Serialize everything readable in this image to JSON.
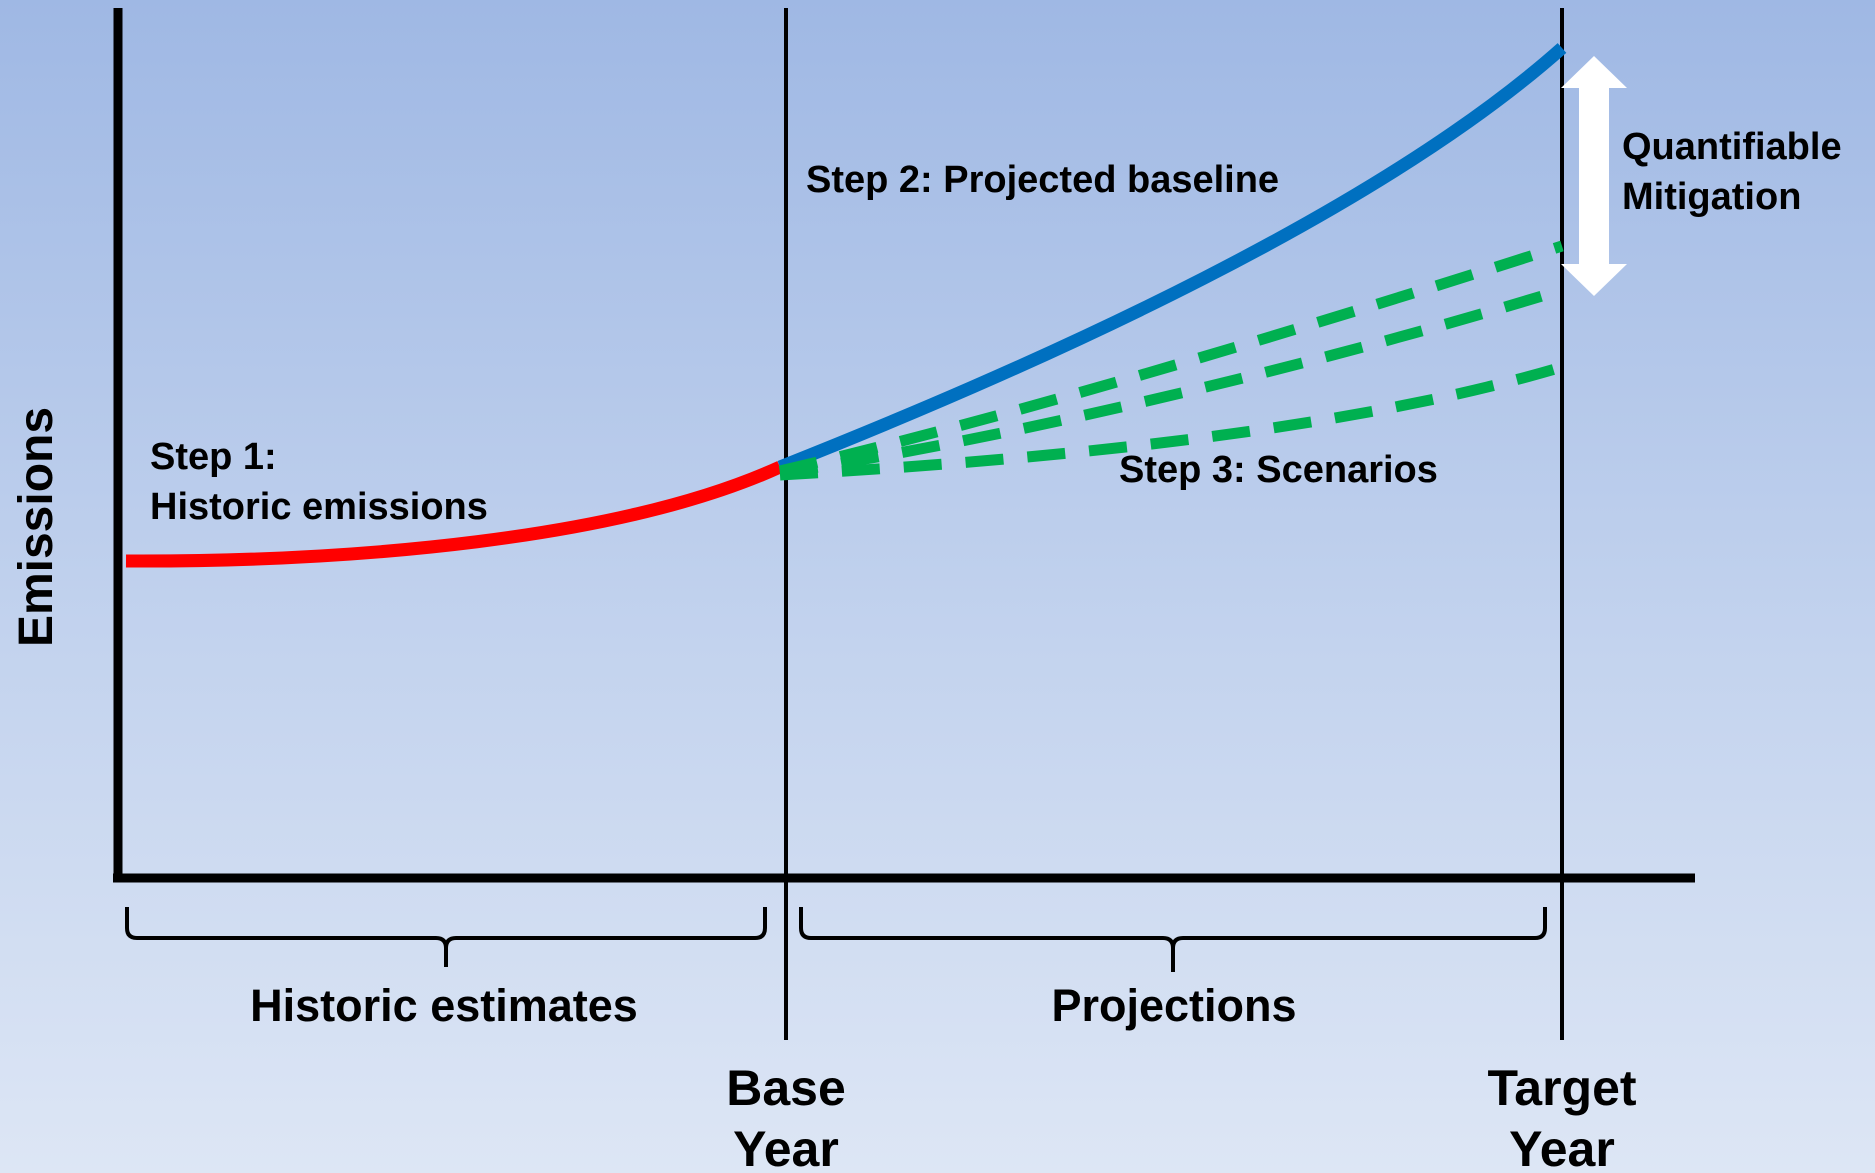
{
  "labels": {
    "y_axis": "Emissions",
    "step1_line1": "Step 1:",
    "step1_line2": "Historic emissions",
    "step2": "Step 2: Projected baseline",
    "step3": "Step 3: Scenarios",
    "mitigation_line1": "Quantifiable",
    "mitigation_line2": "Mitigation",
    "historic_estimates": "Historic estimates",
    "projections": "Projections",
    "base_year_line1": "Base",
    "base_year_line2": "Year",
    "target_year_line1": "Target",
    "target_year_line2": "Year"
  },
  "colors": {
    "historic": "#ff0000",
    "baseline": "#0070c0",
    "scenarios": "#00b050",
    "mitigation_arrow": "#ffffff",
    "axes": "#000000"
  }
}
